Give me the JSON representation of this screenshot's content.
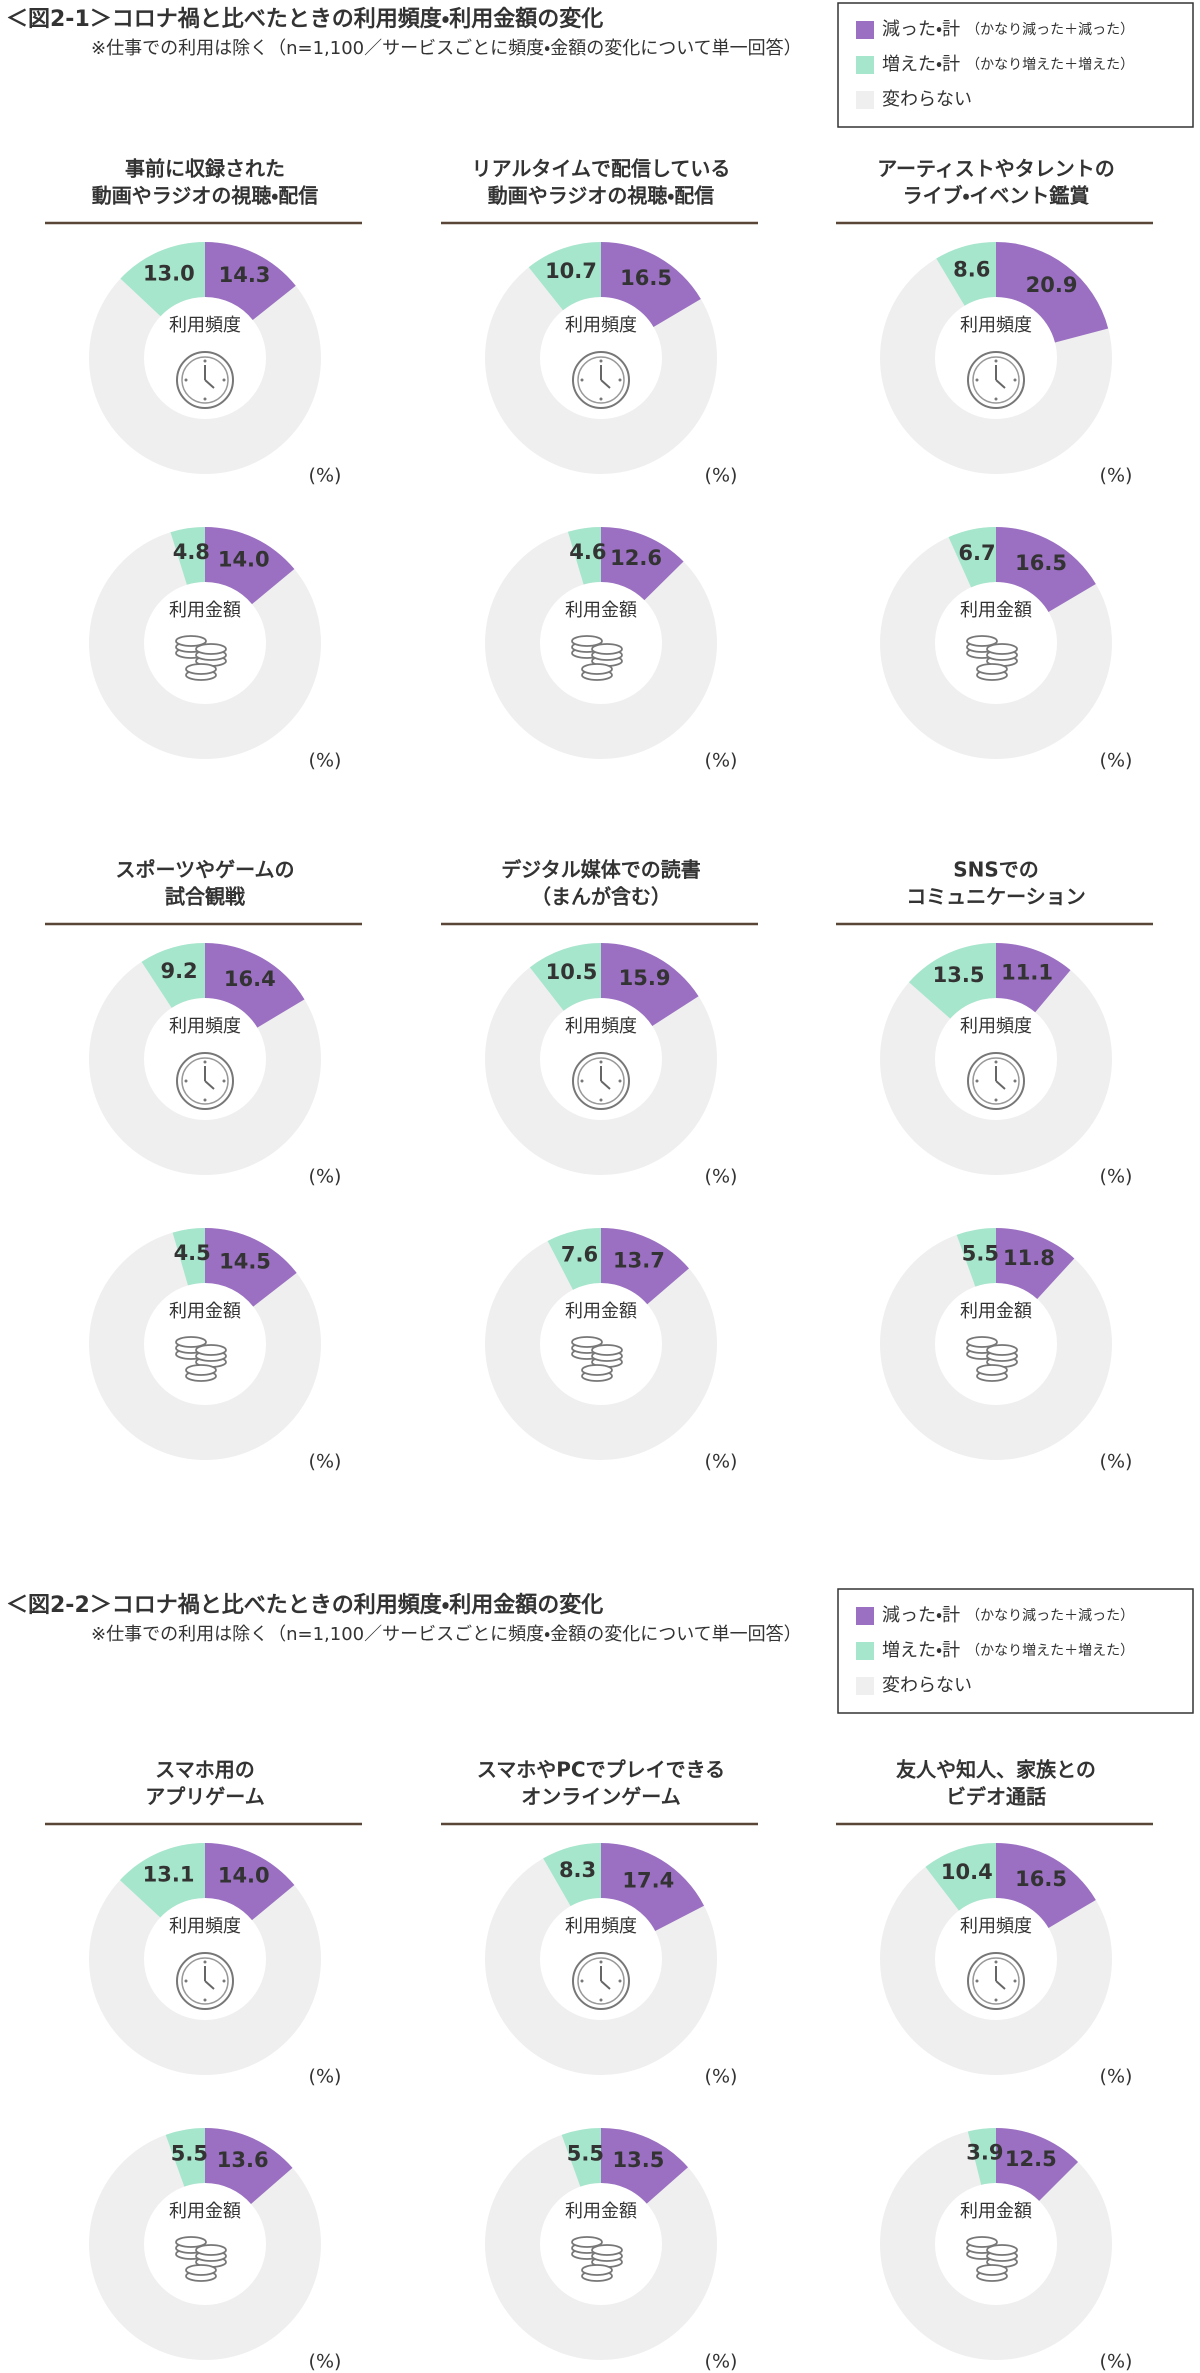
{
  "figures": [
    {
      "title": "＜図2-1＞コロナ禍と比べたときの利用頻度・利用金額の変化",
      "note": "※仕事での利用は除く（n=1,100／サービスごとに頻度・金額の変化について単一回答）",
      "legend": [
        {
          "name": "減った・計",
          "note": "（かなり減った＋減った）",
          "color": "#9b70c2"
        },
        {
          "name": "増えた・計",
          "note": "（かなり増えた＋増えた）",
          "color": "#a6e6cd"
        },
        {
          "name": "変わらない",
          "color": "#efefef"
        }
      ],
      "panels": [
        {
          "title": [
            "事前に収録された",
            "動画やラジオの視聴・配信"
          ],
          "charts": [
            {
              "type": "donut",
              "label": "利用頻度",
              "values": [
                14.3,
                13.0
              ],
              "value_labels": [
                "14.3",
                "13.0"
              ],
              "unit": "(%)"
            },
            {
              "type": "donut",
              "label": "利用金額",
              "values": [
                14.0,
                4.8
              ],
              "value_labels": [
                "14.0",
                "4.8"
              ],
              "unit": "(%)"
            }
          ]
        },
        {
          "title": [
            "リアルタイムで配信している",
            "動画やラジオの視聴・配信"
          ],
          "charts": [
            {
              "type": "donut",
              "label": "利用頻度",
              "values": [
                16.5,
                10.7
              ],
              "unit": "(%)"
            },
            {
              "type": "donut",
              "label": "利用金額",
              "values": [
                12.6,
                4.6
              ],
              "unit": "(%)"
            }
          ]
        },
        {
          "title": [
            "アーティストやタレントの",
            "ライブ・イベント鑑賞"
          ],
          "charts": [
            {
              "type": "donut",
              "label": "利用頻度",
              "values": [
                20.9,
                8.6
              ],
              "unit": "(%)"
            },
            {
              "type": "donut",
              "label": "利用金額",
              "values": [
                16.5,
                6.7
              ],
              "unit": "(%)"
            }
          ]
        },
        {
          "title": [
            "スポーツやゲームの",
            "試合観戦"
          ],
          "charts": [
            {
              "type": "donut",
              "label": "利用頻度",
              "values": [
                16.4,
                9.2
              ],
              "unit": "(%)"
            },
            {
              "type": "donut",
              "label": "利用金額",
              "values": [
                14.5,
                4.5
              ],
              "unit": "(%)"
            }
          ]
        },
        {
          "title": [
            "デジタル媒体での読書",
            "（まんが含む）"
          ],
          "charts": [
            {
              "type": "donut",
              "label": "利用頻度",
              "values": [
                15.9,
                10.5
              ],
              "unit": "(%)"
            },
            {
              "type": "donut",
              "label": "利用金額",
              "values": [
                13.7,
                7.6
              ],
              "unit": "(%)"
            }
          ]
        },
        {
          "title": [
            "SNSでの",
            "コミュニケーション"
          ],
          "charts": [
            {
              "type": "donut",
              "label": "利用頻度",
              "values": [
                11.1,
                13.5
              ],
              "unit": "(%)"
            },
            {
              "type": "donut",
              "label": "利用金額",
              "values": [
                11.8,
                5.5
              ],
              "unit": "(%)"
            }
          ]
        }
      ]
    },
    {
      "title": "＜図2-2＞コロナ禍と比べたときの利用頻度・利用金額の変化",
      "note": "※仕事での利用は除く（n=1,100／サービスごとに頻度・金額の変化について単一回答）",
      "legend": [
        {
          "name": "減った・計",
          "note": "（かなり減った＋減った）",
          "color": "#9b70c2"
        },
        {
          "name": "増えた・計",
          "note": "（かなり増えた＋増えた）",
          "color": "#a6e6cd"
        },
        {
          "name": "変わらない",
          "color": "#efefef"
        }
      ],
      "panels": [
        {
          "title": [
            "スマホ用の",
            "アプリゲーム"
          ],
          "charts": [
            {
              "type": "donut",
              "label": "利用頻度",
              "values": [
                14.0,
                13.1
              ],
              "value_labels": [
                "14.0",
                "13.1"
              ],
              "unit": "(%)"
            },
            {
              "type": "donut",
              "label": "利用金額",
              "values": [
                13.6,
                5.5
              ],
              "unit": "(%)"
            }
          ]
        },
        {
          "title": [
            "スマホやPCでプレイできる",
            "オンラインゲーム"
          ],
          "charts": [
            {
              "type": "donut",
              "label": "利用頻度",
              "values": [
                17.4,
                8.3
              ],
              "unit": "(%)"
            },
            {
              "type": "donut",
              "label": "利用金額",
              "values": [
                13.5,
                5.5
              ],
              "unit": "(%)"
            }
          ]
        },
        {
          "title": [
            "友人や知人、家族との",
            "ビデオ通話"
          ],
          "charts": [
            {
              "type": "donut",
              "label": "利用頻度",
              "values": [
                16.5,
                10.4
              ],
              "unit": "(%)"
            },
            {
              "type": "donut",
              "label": "利用金額",
              "values": [
                12.5,
                3.9
              ],
              "unit": "(%)"
            }
          ]
        }
      ]
    }
  ]
}
